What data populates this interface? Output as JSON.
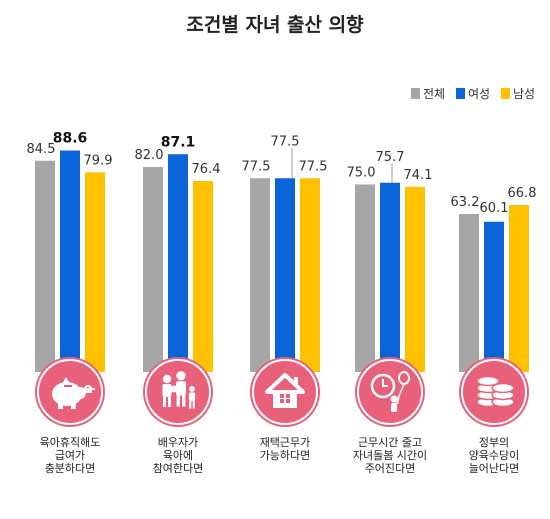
{
  "chart_data": {
    "type": "bar",
    "title": "조건별 자녀 출산 의향",
    "categories": [
      [
        "육아휴직해도",
        "급여가",
        "충분하다면"
      ],
      [
        "배우자가",
        "육아에",
        "참여한다면"
      ],
      [
        "재택근무가",
        "가능하다면"
      ],
      [
        "근무시간 줄고",
        "자녀돌봄 시간이",
        "주어진다면"
      ],
      [
        "정부의",
        "양육수당이",
        "늘어난다면"
      ]
    ],
    "series": [
      {
        "name": "전체",
        "color": "#a6a6a6",
        "values": [
          84.5,
          82.0,
          77.5,
          75.0,
          63.2
        ],
        "labels": [
          "84.5",
          "82.0",
          "77.5",
          "75.0",
          "63.2"
        ]
      },
      {
        "name": "여성",
        "color": "#0a64d8",
        "values": [
          88.6,
          87.1,
          77.5,
          75.7,
          60.1
        ],
        "labels": [
          "88.6",
          "87.1",
          "77.5",
          "75.7",
          "60.1"
        ]
      },
      {
        "name": "남성",
        "color": "#ffc000",
        "values": [
          79.9,
          76.4,
          77.5,
          74.1,
          66.8
        ],
        "labels": [
          "79.9",
          "76.4",
          "77.5",
          "74.1",
          "66.8"
        ]
      }
    ],
    "highlight": {
      "series": 1,
      "categories": [
        0,
        1
      ]
    },
    "icons": [
      "piggy-bank-icon",
      "family-icon",
      "house-icon",
      "clock-balloon-icon",
      "coins-icon"
    ],
    "legend_position": "top-right",
    "grid": false,
    "ylim": [
      0,
      100
    ]
  },
  "colors": {
    "badge": "#e8607a",
    "badge_ring": "#ffffff"
  }
}
